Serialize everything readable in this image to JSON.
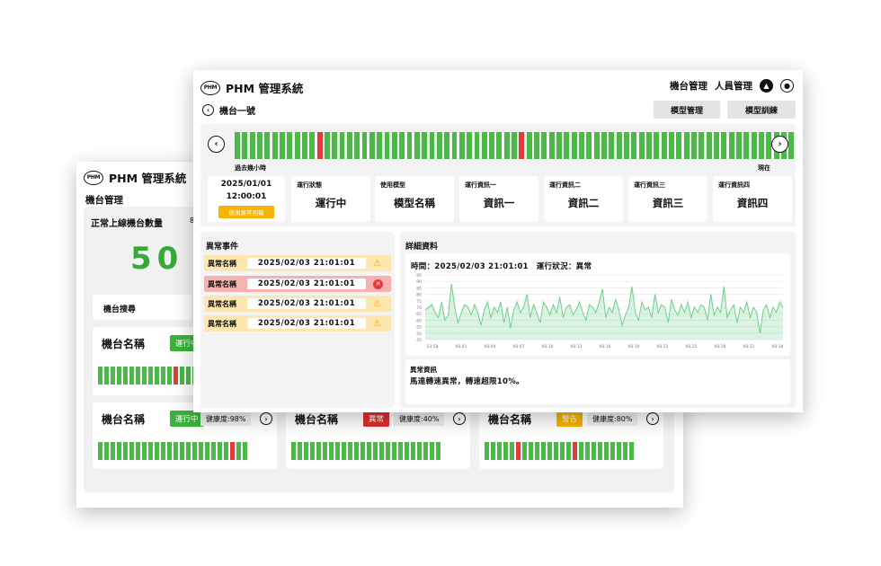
{
  "app": {
    "logo_text": "PHM",
    "title": "PHM 管理系統"
  },
  "back_window": {
    "subtitle": "機台管理",
    "online_label": "正常上線機台數量",
    "online_label_extra": "8",
    "online_count": "50",
    "search_label": "機台搜尋",
    "machines": [
      {
        "name": "機台名稱",
        "status": "運行中",
        "status_color": "#3bb33a",
        "health": "",
        "segments": [
          0,
          0,
          0,
          0,
          0,
          0,
          0,
          0,
          0,
          0,
          0,
          0,
          1,
          0,
          0,
          0
        ]
      },
      {
        "name": "機台名稱",
        "status": "運行中",
        "status_color": "#3bb33a",
        "health": "健康度:98%",
        "segments": [
          0,
          0,
          0,
          0,
          0,
          0,
          0,
          0,
          0,
          0,
          0,
          0,
          0,
          0,
          0,
          0,
          0,
          0,
          0,
          0,
          0,
          1,
          0,
          0
        ]
      },
      {
        "name": "機台名稱",
        "status": "異常",
        "status_color": "#d93030",
        "health": "健康度:40%",
        "segments": [
          0,
          0,
          0,
          0,
          0,
          0,
          0,
          0,
          0,
          0,
          0,
          0,
          0,
          0,
          0,
          0,
          0,
          0,
          0,
          0,
          0,
          0,
          0,
          0
        ]
      },
      {
        "name": "機台名稱",
        "status": "警告",
        "status_color": "#f4b400",
        "health": "健康度:80%",
        "segments": [
          0,
          0,
          0,
          0,
          0,
          1,
          0,
          0,
          0,
          0,
          0,
          0,
          0,
          0,
          1,
          0,
          0,
          0,
          0,
          0,
          0,
          0,
          0,
          0
        ]
      }
    ]
  },
  "front_window": {
    "nav": {
      "machine_mgmt": "機台管理",
      "people_mgmt": "人員管理",
      "bell_icon": "bell-icon",
      "user_icon": "user-icon"
    },
    "machine_title": "機台一號",
    "buttons": {
      "model_mgmt": "模型管理",
      "model_train": "模型訓練"
    },
    "timeline": {
      "left_label": "過去幾小時",
      "right_label": "現在",
      "segments": [
        0,
        0,
        0,
        0,
        0,
        0,
        0,
        0,
        0,
        0,
        0,
        1,
        0,
        0,
        0,
        0,
        0,
        0,
        0,
        0,
        0,
        0,
        0,
        0,
        0,
        0,
        0,
        0,
        0,
        0,
        0,
        0,
        0,
        0,
        0,
        0,
        0,
        0,
        1,
        0,
        0,
        0,
        0,
        0,
        0,
        0,
        0,
        0,
        0,
        0,
        0,
        0,
        0,
        0,
        0,
        0,
        0,
        0,
        0,
        0,
        0,
        0,
        0,
        0,
        0,
        0,
        0,
        0,
        0,
        0,
        0,
        0,
        0,
        0,
        0
      ]
    },
    "date_card": {
      "date": "2025/01/01",
      "time": "12:00:01",
      "button": "偵測異常回報"
    },
    "info_cards": [
      {
        "label": "運行狀態",
        "value": "運行中"
      },
      {
        "label": "使用模型",
        "value": "模型名稱"
      },
      {
        "label": "運行資訊一",
        "value": "資訊一"
      },
      {
        "label": "運行資訊二",
        "value": "資訊二"
      },
      {
        "label": "運行資訊三",
        "value": "資訊三"
      },
      {
        "label": "運行資訊四",
        "value": "資訊四"
      }
    ],
    "events": {
      "title": "異常事件",
      "items": [
        {
          "name": "異常名稱",
          "time": "2025/02/03 21:01:01",
          "level": "warn"
        },
        {
          "name": "異常名稱",
          "time": "2025/02/03 21:01:01",
          "level": "err"
        },
        {
          "name": "異常名稱",
          "time": "2025/02/03 21:01:01",
          "level": "warn"
        },
        {
          "name": "異常名稱",
          "time": "2025/02/03 21:01:01",
          "level": "warn"
        }
      ]
    },
    "detail": {
      "title": "詳細資料",
      "meta": "時間：2025/02/03 21:01:01　運行狀況：異常",
      "anomaly_title": "異常資訊",
      "anomaly_text": "馬達轉速異常，轉速超限10%。"
    }
  },
  "chart_data": {
    "type": "area",
    "title": "",
    "xlabel": "",
    "ylabel": "",
    "color": "#6fd08a",
    "ylim": [
      45,
      95
    ],
    "y_ticks": [
      45,
      50,
      55,
      60,
      65,
      70,
      75,
      80,
      85,
      90,
      95
    ],
    "x_ticks": [
      "23:58",
      "00:01",
      "00:04",
      "00:07",
      "00:10",
      "00:13",
      "00:16",
      "00:19",
      "00:22",
      "00:25",
      "00:28",
      "00:31",
      "00:34"
    ],
    "values": [
      68,
      70,
      72,
      66,
      62,
      74,
      60,
      64,
      88,
      70,
      58,
      66,
      72,
      70,
      64,
      72,
      66,
      56,
      68,
      74,
      62,
      70,
      66,
      74,
      58,
      70,
      54,
      68,
      74,
      66,
      70,
      80,
      62,
      72,
      66,
      58,
      74,
      70,
      64,
      72,
      66,
      78,
      62,
      70,
      72,
      64,
      68,
      74,
      66,
      60,
      72,
      70,
      66,
      74,
      84,
      62,
      70,
      66,
      76,
      68,
      56,
      64,
      70,
      86,
      66,
      60,
      74,
      68,
      70,
      62,
      80,
      66,
      72,
      70,
      58,
      76,
      68,
      64,
      72,
      66,
      74,
      62,
      70,
      66,
      72,
      70,
      60,
      80,
      64,
      70,
      66,
      86,
      62,
      68,
      72,
      58,
      70,
      66,
      74,
      62,
      70,
      66,
      50,
      68,
      72,
      62,
      70,
      66,
      74,
      70
    ]
  }
}
